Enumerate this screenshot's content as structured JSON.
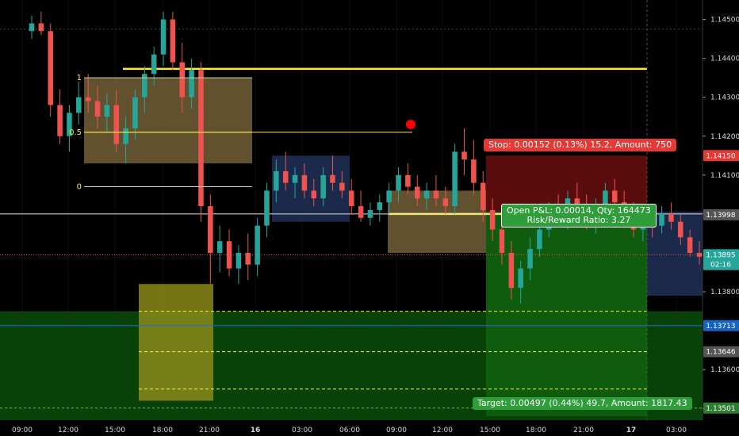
{
  "chart_data": {
    "type": "candlestick",
    "instrument_note": "",
    "x_ticks": [
      "09:00",
      "12:00",
      "15:00",
      "18:00",
      "21:00",
      "16",
      "03:00",
      "06:00",
      "09:00",
      "12:00",
      "15:00",
      "18:00",
      "21:00",
      "17",
      "03:00"
    ],
    "y_ticks": [
      "1.14500",
      "1.14400",
      "1.14300",
      "1.14200",
      "1.14100",
      "1.14000",
      "1.13800",
      "1.13600",
      "1.13500"
    ],
    "ylim": [
      1.1347,
      1.1455
    ],
    "price_tags": [
      {
        "label": "1.14150",
        "value": 1.1415,
        "color": "#e53935"
      },
      {
        "label": "1.13998",
        "value": 1.13998,
        "color": "#555555"
      },
      {
        "label": "1.13895",
        "value": 1.13895,
        "color": "#26a69a"
      },
      {
        "label": "02:16",
        "value": 1.1387,
        "color": "#26a69a"
      },
      {
        "label": "1.13713",
        "value": 1.13713,
        "color": "#1565c0"
      },
      {
        "label": "1.13646",
        "value": 1.13646,
        "color": "#555555"
      },
      {
        "label": "1.13501",
        "value": 1.13501,
        "color": "#2e7d32"
      }
    ],
    "fib_levels": [
      {
        "label": "1",
        "value": 1.1435
      },
      {
        "label": "0.5",
        "value": 1.1421
      },
      {
        "label": "0",
        "value": 1.1407
      }
    ],
    "stop_label": "Stop: 0.00152 (0.13%) 15.2, Amount: 750",
    "pnl_line1": "Open P&L: 0.00014, Qty: 164473",
    "pnl_line2": "Risk/Reward Ratio: 3.27",
    "target_label": "Target: 0.00497 (0.44%) 49.7, Amount: 1817.43",
    "colors": {
      "up": "#26a69a",
      "down": "#ef5350",
      "horizontal_line": "#ffeb3b",
      "stop_zone": "#5a0d0d",
      "target_zone": "#0a4d0a",
      "box_brown": "#6b5a34",
      "box_navy": "#1b2a4a",
      "blue_line": "#1e6bd6"
    },
    "candles": [
      [
        1.1447,
        1.1451,
        1.1445,
        1.1449
      ],
      [
        1.1449,
        1.1452,
        1.1446,
        1.1447
      ],
      [
        1.1447,
        1.1449,
        1.1425,
        1.1428
      ],
      [
        1.1428,
        1.1432,
        1.1418,
        1.142
      ],
      [
        1.142,
        1.1428,
        1.1416,
        1.1426
      ],
      [
        1.1426,
        1.1434,
        1.1423,
        1.143
      ],
      [
        1.143,
        1.1436,
        1.1426,
        1.1429
      ],
      [
        1.1429,
        1.1433,
        1.1422,
        1.1425
      ],
      [
        1.1425,
        1.1431,
        1.1421,
        1.1428
      ],
      [
        1.1428,
        1.1432,
        1.1416,
        1.1418
      ],
      [
        1.1418,
        1.1425,
        1.1413,
        1.1422
      ],
      [
        1.1422,
        1.1432,
        1.1419,
        1.143
      ],
      [
        1.143,
        1.1438,
        1.1426,
        1.1436
      ],
      [
        1.1436,
        1.1443,
        1.1433,
        1.1441
      ],
      [
        1.1441,
        1.1452,
        1.1438,
        1.145
      ],
      [
        1.145,
        1.1452,
        1.1437,
        1.1439
      ],
      [
        1.1439,
        1.1444,
        1.1426,
        1.143
      ],
      [
        1.143,
        1.144,
        1.1427,
        1.1437
      ],
      [
        1.1437,
        1.1439,
        1.1398,
        1.1402
      ],
      [
        1.1402,
        1.1405,
        1.1382,
        1.139
      ],
      [
        1.139,
        1.1397,
        1.1385,
        1.1393
      ],
      [
        1.1393,
        1.1396,
        1.1384,
        1.1386
      ],
      [
        1.1386,
        1.1392,
        1.1382,
        1.139
      ],
      [
        1.139,
        1.1395,
        1.1383,
        1.1387
      ],
      [
        1.1387,
        1.1399,
        1.1384,
        1.1397
      ],
      [
        1.1397,
        1.1408,
        1.1394,
        1.1406
      ],
      [
        1.1406,
        1.1414,
        1.1403,
        1.1411
      ],
      [
        1.1411,
        1.1416,
        1.1406,
        1.1408
      ],
      [
        1.1408,
        1.1412,
        1.1404,
        1.141
      ],
      [
        1.141,
        1.1413,
        1.1404,
        1.1406
      ],
      [
        1.1406,
        1.1409,
        1.1402,
        1.1404
      ],
      [
        1.1404,
        1.1412,
        1.1402,
        1.141
      ],
      [
        1.141,
        1.1415,
        1.1406,
        1.1408
      ],
      [
        1.1408,
        1.1411,
        1.1404,
        1.1406
      ],
      [
        1.1406,
        1.1409,
        1.14,
        1.1402
      ],
      [
        1.1402,
        1.1406,
        1.1398,
        1.1399
      ],
      [
        1.1399,
        1.1403,
        1.1397,
        1.1401
      ],
      [
        1.1401,
        1.1405,
        1.1398,
        1.1403
      ],
      [
        1.1403,
        1.1408,
        1.14,
        1.1406
      ],
      [
        1.1406,
        1.1412,
        1.1403,
        1.141
      ],
      [
        1.141,
        1.1413,
        1.1405,
        1.1407
      ],
      [
        1.1407,
        1.141,
        1.1402,
        1.1404
      ],
      [
        1.1404,
        1.1408,
        1.1401,
        1.1406
      ],
      [
        1.1406,
        1.141,
        1.1402,
        1.1404
      ],
      [
        1.1404,
        1.1407,
        1.14,
        1.1402
      ],
      [
        1.1402,
        1.1418,
        1.14,
        1.1416
      ],
      [
        1.1416,
        1.1422,
        1.141,
        1.1414
      ],
      [
        1.1414,
        1.1419,
        1.1405,
        1.1408
      ],
      [
        1.1408,
        1.1411,
        1.1398,
        1.1401
      ],
      [
        1.1401,
        1.1404,
        1.1393,
        1.1396
      ],
      [
        1.1396,
        1.1399,
        1.1387,
        1.139
      ],
      [
        1.139,
        1.1393,
        1.1378,
        1.1381
      ],
      [
        1.1381,
        1.1388,
        1.1377,
        1.1386
      ],
      [
        1.1386,
        1.1394,
        1.1383,
        1.1391
      ],
      [
        1.1391,
        1.1398,
        1.1389,
        1.1396
      ],
      [
        1.1396,
        1.1403,
        1.1394,
        1.1401
      ],
      [
        1.1401,
        1.1405,
        1.1397,
        1.1399
      ],
      [
        1.1399,
        1.1406,
        1.1396,
        1.1404
      ],
      [
        1.1404,
        1.1408,
        1.14,
        1.1402
      ],
      [
        1.1402,
        1.1405,
        1.1396,
        1.1398
      ],
      [
        1.1398,
        1.1404,
        1.1395,
        1.1402
      ],
      [
        1.1402,
        1.1408,
        1.1399,
        1.1406
      ],
      [
        1.1406,
        1.1409,
        1.1401,
        1.1403
      ],
      [
        1.1403,
        1.1406,
        1.1398,
        1.14
      ],
      [
        1.14,
        1.1403,
        1.1394,
        1.1396
      ],
      [
        1.1396,
        1.14,
        1.1393,
        1.1398
      ],
      [
        1.1398,
        1.1401,
        1.1394,
        1.1397
      ],
      [
        1.1397,
        1.1402,
        1.1395,
        1.14
      ],
      [
        1.14,
        1.1403,
        1.1396,
        1.1398
      ],
      [
        1.1398,
        1.14,
        1.1392,
        1.1394
      ],
      [
        1.1394,
        1.1396,
        1.1389,
        1.139
      ],
      [
        1.139,
        1.1393,
        1.1387,
        1.1389
      ]
    ]
  }
}
